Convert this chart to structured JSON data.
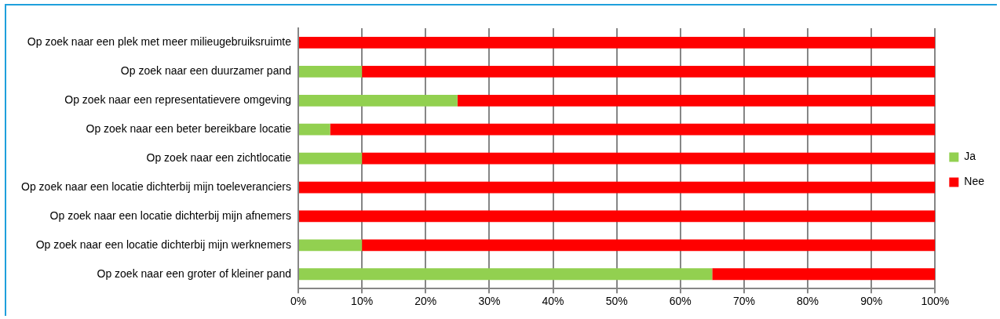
{
  "chart_data": {
    "type": "bar",
    "orientation": "horizontal",
    "stacked": true,
    "categories": [
      "Op zoek naar een plek met meer milieugebruiksruimte",
      "Op zoek naar een duurzamer pand",
      "Op zoek naar een representatievere omgeving",
      "Op zoek naar een beter bereikbare locatie",
      "Op zoek naar een zichtlocatie",
      "Op zoek naar een locatie dichterbij mijn toeleveranciers",
      "Op zoek naar een locatie dichterbij mijn afnemers",
      "Op zoek naar een locatie dichterbij mijn werknemers",
      "Op zoek naar een groter of kleiner pand"
    ],
    "series": [
      {
        "name": "Ja",
        "color": "#92d050",
        "values": [
          0,
          10,
          25,
          5,
          10,
          0,
          0,
          10,
          65
        ]
      },
      {
        "name": "Nee",
        "color": "#ff0000",
        "values": [
          100,
          90,
          75,
          95,
          90,
          100,
          100,
          90,
          35
        ]
      }
    ],
    "xlim": [
      0,
      100
    ],
    "xticks": [
      {
        "value": 0,
        "label": "0%"
      },
      {
        "value": 10,
        "label": "10%"
      },
      {
        "value": 20,
        "label": "20%"
      },
      {
        "value": 30,
        "label": "30%"
      },
      {
        "value": 40,
        "label": "40%"
      },
      {
        "value": 50,
        "label": "50%"
      },
      {
        "value": 60,
        "label": "60%"
      },
      {
        "value": 70,
        "label": "70%"
      },
      {
        "value": 80,
        "label": "80%"
      },
      {
        "value": 90,
        "label": "90%"
      },
      {
        "value": 100,
        "label": "100%"
      }
    ],
    "grid": "x",
    "legend": "right"
  }
}
